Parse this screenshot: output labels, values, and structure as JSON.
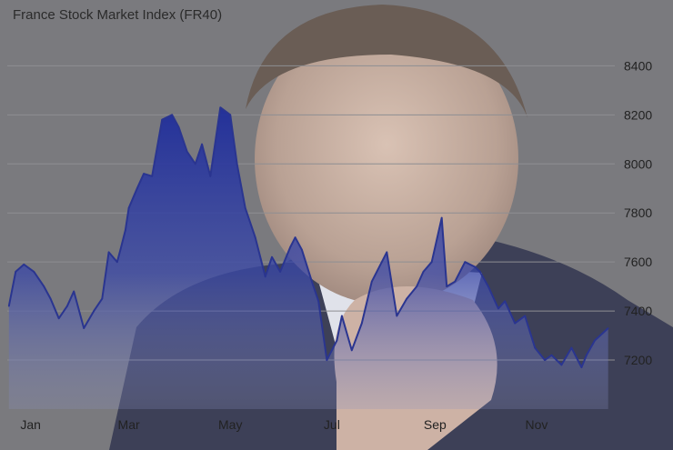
{
  "chart_data": {
    "type": "area",
    "title": "France Stock Market Index (FR40)",
    "xlabel": "",
    "ylabel": "",
    "x_ticks": [
      "Jan",
      "Mar",
      "May",
      "Jul",
      "Sep",
      "Nov"
    ],
    "y_ticks": [
      7200,
      7400,
      7600,
      7800,
      8000,
      8200,
      8400
    ],
    "ylim": [
      7000,
      8520
    ],
    "y_axis_position": "right",
    "grid": true,
    "series": [
      {
        "color": "#2a3590",
        "x": [
          "2023-01-02",
          "2023-01-06",
          "2023-01-11",
          "2023-01-17",
          "2023-01-23",
          "2023-01-27",
          "2023-02-01",
          "2023-02-06",
          "2023-02-10",
          "2023-02-16",
          "2023-02-22",
          "2023-02-27",
          "2023-03-03",
          "2023-03-08",
          "2023-03-10",
          "2023-03-13",
          "2023-03-15",
          "2023-03-20",
          "2023-03-24",
          "2023-03-29",
          "2023-04-04",
          "2023-04-10",
          "2023-04-14",
          "2023-04-19",
          "2023-04-24",
          "2023-04-28",
          "2023-05-03",
          "2023-05-09",
          "2023-05-15",
          "2023-05-19",
          "2023-05-24",
          "2023-05-30",
          "2023-06-05",
          "2023-06-09",
          "2023-06-14",
          "2023-06-20",
          "2023-06-23",
          "2023-06-27",
          "2023-07-03",
          "2023-07-07",
          "2023-07-12",
          "2023-07-18",
          "2023-07-21",
          "2023-07-27",
          "2023-08-02",
          "2023-08-08",
          "2023-08-14",
          "2023-08-17",
          "2023-08-23",
          "2023-08-29",
          "2023-09-04",
          "2023-09-08",
          "2023-09-13",
          "2023-09-19",
          "2023-09-22",
          "2023-09-27",
          "2023-10-03",
          "2023-10-09",
          "2023-10-12",
          "2023-10-17",
          "2023-10-23",
          "2023-10-27",
          "2023-11-02",
          "2023-11-08",
          "2023-11-14",
          "2023-11-20",
          "2023-11-24",
          "2023-11-30",
          "2023-12-06",
          "2023-12-12",
          "2023-12-15",
          "2023-12-20",
          "2023-12-28"
        ],
        "values": [
          7420,
          7560,
          7590,
          7560,
          7500,
          7450,
          7370,
          7420,
          7480,
          7330,
          7400,
          7450,
          7640,
          7600,
          7650,
          7730,
          7820,
          7900,
          7960,
          7950,
          8180,
          8200,
          8150,
          8050,
          8000,
          8080,
          7950,
          8230,
          8200,
          8000,
          7820,
          7700,
          7540,
          7620,
          7560,
          7660,
          7700,
          7650,
          7520,
          7440,
          7200,
          7280,
          7380,
          7240,
          7350,
          7520,
          7600,
          7640,
          7380,
          7450,
          7500,
          7560,
          7600,
          7780,
          7500,
          7520,
          7600,
          7580,
          7560,
          7500,
          7410,
          7440,
          7350,
          7380,
          7250,
          7200,
          7220,
          7180,
          7250,
          7170,
          7220,
          7280,
          7330
        ]
      }
    ]
  }
}
